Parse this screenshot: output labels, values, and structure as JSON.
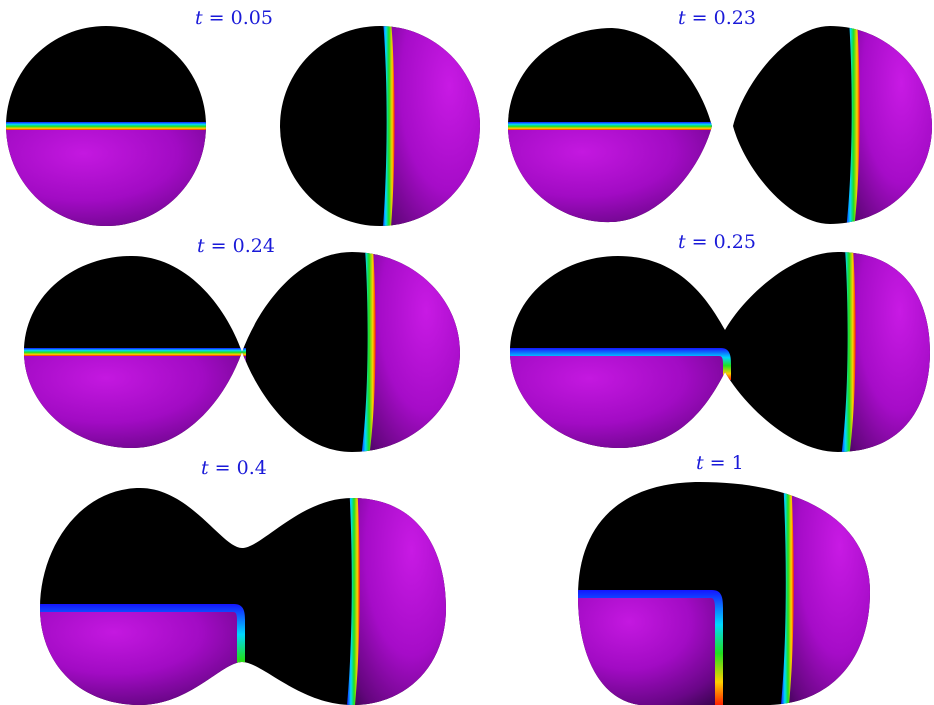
{
  "panels": [
    {
      "label_var": "t",
      "label_eq": " = ",
      "label_val": "0.05"
    },
    {
      "label_var": "t",
      "label_eq": " = ",
      "label_val": "0.23"
    },
    {
      "label_var": "t",
      "label_eq": " = ",
      "label_val": "0.24"
    },
    {
      "label_var": "t",
      "label_eq": " = ",
      "label_val": "0.25"
    },
    {
      "label_var": "t",
      "label_eq": " = ",
      "label_val": "0.4"
    },
    {
      "label_var": "t",
      "label_eq": " = ",
      "label_val": "1"
    }
  ],
  "colors": {
    "phase_a": "#000000",
    "phase_b": "#b00ccf",
    "phase_b_shadow": "#3c0650",
    "label": "#1a1ad8"
  }
}
